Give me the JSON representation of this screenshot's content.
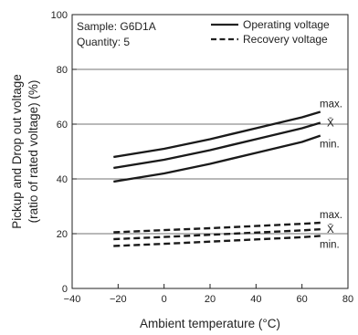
{
  "chart_data": {
    "type": "line",
    "xlabel": "Ambient temperature (°C)",
    "ylabel_lines": [
      "Pickup and Drop out voltage",
      "(ratio of rated voltage) (%)"
    ],
    "xlim": [
      -40,
      80
    ],
    "ylim": [
      0,
      100
    ],
    "xticks": [
      -40,
      -20,
      0,
      20,
      40,
      60,
      80
    ],
    "yticks": [
      0,
      20,
      40,
      60,
      80,
      100
    ],
    "annotations": [
      "Sample: G6D1A",
      "Quantity: 5"
    ],
    "legend": {
      "position": "top-right",
      "entries": [
        {
          "label": "Operating voltage",
          "style": "solid"
        },
        {
          "label": "Recovery voltage",
          "style": "dashed"
        }
      ]
    },
    "end_labels": [
      {
        "text": "max.",
        "curve": "op-max"
      },
      {
        "text": "X̄",
        "curve": "op-mean"
      },
      {
        "text": "min.",
        "curve": "op-min"
      },
      {
        "text": "max.",
        "curve": "rec-max"
      },
      {
        "text": "X̄",
        "curve": "rec-mean"
      },
      {
        "text": "min.",
        "curve": "rec-min"
      }
    ],
    "series": [
      {
        "id": "op-max",
        "group": "Operating voltage",
        "style": "solid",
        "x": [
          -22,
          0,
          20,
          40,
          60,
          68
        ],
        "y": [
          48,
          51,
          54.5,
          58.5,
          62.5,
          64.5
        ]
      },
      {
        "id": "op-mean",
        "group": "Operating voltage",
        "style": "solid",
        "x": [
          -22,
          0,
          20,
          40,
          60,
          68
        ],
        "y": [
          44,
          47,
          50.5,
          54.5,
          58.5,
          60.5
        ]
      },
      {
        "id": "op-min",
        "group": "Operating voltage",
        "style": "solid",
        "x": [
          -22,
          0,
          20,
          40,
          60,
          68
        ],
        "y": [
          39,
          42,
          45.5,
          49.5,
          53.5,
          55.8
        ]
      },
      {
        "id": "rec-max",
        "group": "Recovery voltage",
        "style": "dashed",
        "x": [
          -22,
          0,
          20,
          40,
          60,
          68
        ],
        "y": [
          20.5,
          21.3,
          22,
          22.8,
          23.6,
          24
        ]
      },
      {
        "id": "rec-mean",
        "group": "Recovery voltage",
        "style": "dashed",
        "x": [
          -22,
          0,
          20,
          40,
          60,
          68
        ],
        "y": [
          18,
          18.8,
          19.6,
          20.4,
          21.2,
          21.6
        ]
      },
      {
        "id": "rec-min",
        "group": "Recovery voltage",
        "style": "dashed",
        "x": [
          -22,
          0,
          20,
          40,
          60,
          68
        ],
        "y": [
          15.5,
          16.3,
          17.1,
          17.9,
          18.7,
          19.2
        ]
      }
    ]
  }
}
